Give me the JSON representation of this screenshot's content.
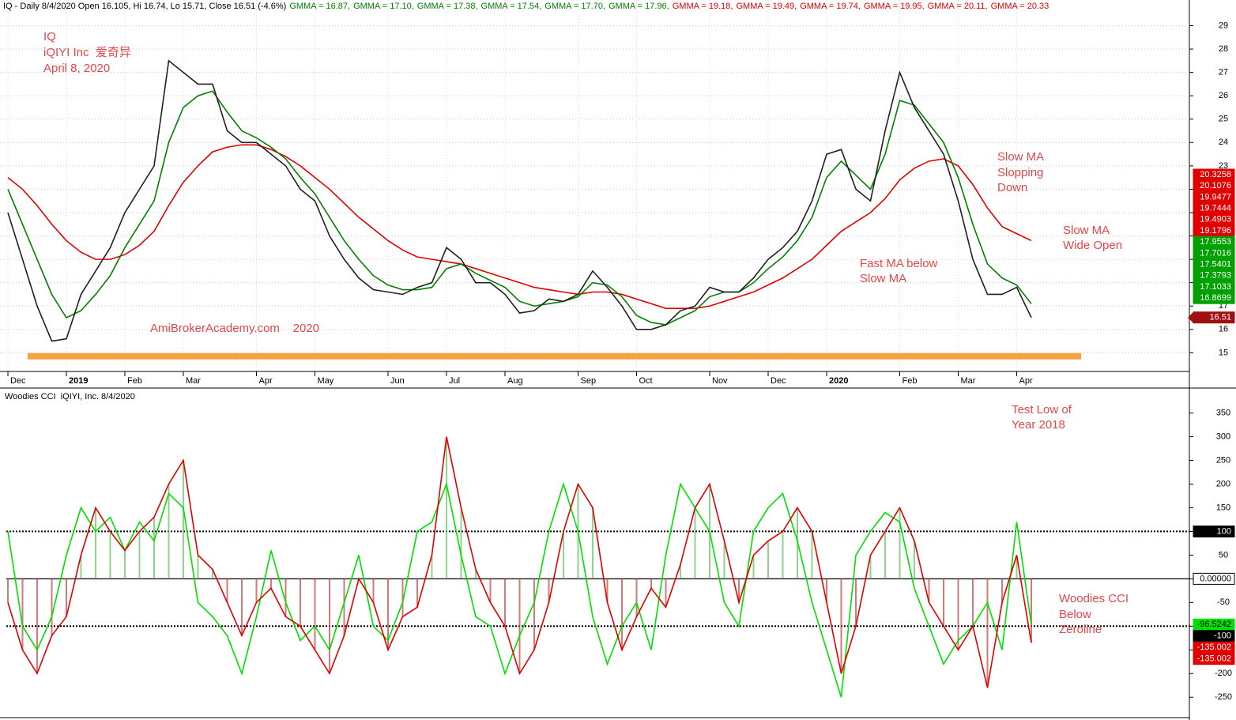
{
  "chart_data": [
    {
      "type": "line",
      "title": "IQ - Daily 8/4/2020 Open 16.105, Hi 16.74, Lo 15.71, Close 16.51 (-4.6%)",
      "header_items": [
        {
          "text": "GMMA = 16.87,",
          "color": "#008000"
        },
        {
          "text": "GMMA = 17.10,",
          "color": "#008000"
        },
        {
          "text": "GMMA = 17.38,",
          "color": "#008000"
        },
        {
          "text": "GMMA = 17.54,",
          "color": "#008000"
        },
        {
          "text": "GMMA = 17.70,",
          "color": "#008000"
        },
        {
          "text": "GMMA = 17.96,",
          "color": "#008000"
        },
        {
          "text": "GMMA = 19.18,",
          "color": "#e00000"
        },
        {
          "text": "GMMA = 19.49,",
          "color": "#e00000"
        },
        {
          "text": "GMMA = 19.74,",
          "color": "#e00000"
        },
        {
          "text": "GMMA = 19.95,",
          "color": "#e00000"
        },
        {
          "text": "GMMA = 20.11,",
          "color": "#e00000"
        },
        {
          "text": "GMMA = 20.33",
          "color": "#e00000"
        }
      ],
      "categories": [
        "Dec",
        null,
        null,
        null,
        "2019",
        null,
        null,
        null,
        "Feb",
        null,
        null,
        null,
        "Mar",
        null,
        null,
        null,
        null,
        "Apr",
        null,
        null,
        null,
        "May",
        null,
        null,
        null,
        null,
        "Jun",
        null,
        null,
        null,
        "Jul",
        null,
        null,
        null,
        "Aug",
        null,
        null,
        null,
        null,
        "Sep",
        null,
        null,
        null,
        "Oct",
        null,
        null,
        null,
        null,
        "Nov",
        null,
        null,
        null,
        "Dec",
        null,
        null,
        null,
        "2020",
        null,
        null,
        null,
        null,
        "Feb",
        null,
        null,
        null,
        "Mar",
        null,
        null,
        null,
        "Apr",
        null
      ],
      "series": [
        {
          "color": "#e00000",
          "values": [
            22.5,
            22,
            21.3,
            20.5,
            19.8,
            19.3,
            19,
            19,
            19.2,
            19.6,
            20.2,
            21.3,
            22.3,
            23,
            23.6,
            23.8,
            23.9,
            23.9,
            23.7,
            23.4,
            23,
            22.5,
            22,
            21.4,
            20.8,
            20.3,
            19.8,
            19.4,
            19.1,
            19,
            18.9,
            18.8,
            18.6,
            18.4,
            18.2,
            18,
            17.8,
            17.7,
            17.6,
            17.5,
            17.6,
            17.6,
            17.5,
            17.3,
            17.1,
            16.9,
            16.9,
            16.9,
            17,
            17.2,
            17.4,
            17.6,
            17.9,
            18.2,
            18.6,
            19,
            19.6,
            20.2,
            20.6,
            21,
            21.6,
            22.4,
            22.9,
            23.2,
            23.3,
            23,
            22.2,
            21.2,
            20.4,
            20.1,
            19.8
          ]
        },
        {
          "color": "#008000",
          "values": [
            22,
            20.5,
            19,
            17.5,
            16.5,
            16.8,
            17.5,
            18.3,
            19.5,
            20.5,
            21.5,
            24,
            25.5,
            26,
            26.2,
            25.3,
            24.5,
            24.2,
            23.8,
            23.3,
            22.5,
            21.8,
            20.8,
            19.8,
            19,
            18.3,
            17.9,
            17.7,
            17.7,
            17.8,
            18.6,
            18.8,
            18.4,
            18.1,
            17.8,
            17.2,
            17,
            17.1,
            17.2,
            17.4,
            18,
            17.9,
            17.4,
            16.6,
            16.3,
            16.2,
            16.5,
            16.8,
            17.4,
            17.6,
            17.6,
            18,
            18.6,
            19.1,
            19.8,
            20.8,
            22.5,
            23.2,
            22.6,
            22,
            23.5,
            25.8,
            25.6,
            24.8,
            24,
            22.5,
            20.5,
            18.8,
            18.2,
            17.9,
            17.1
          ]
        },
        {
          "color": "#202020",
          "values": [
            21,
            19,
            17,
            15.5,
            15.6,
            17.5,
            18.5,
            19.5,
            21,
            22,
            23,
            27.5,
            27,
            26.5,
            26.5,
            24.5,
            24,
            24,
            23.5,
            23,
            22,
            21.5,
            20,
            19,
            18.2,
            17.7,
            17.6,
            17.5,
            17.8,
            18,
            19.5,
            19,
            18,
            18,
            17.5,
            16.7,
            16.8,
            17.3,
            17.2,
            17.5,
            18.5,
            17.8,
            17,
            16,
            16,
            16.2,
            16.8,
            17,
            17.8,
            17.6,
            17.6,
            18.2,
            19,
            19.5,
            20.2,
            21.5,
            23.5,
            23.7,
            22,
            21.5,
            24.5,
            27,
            25.5,
            24.5,
            23.5,
            21.5,
            19,
            17.5,
            17.5,
            17.8,
            16.51
          ]
        }
      ],
      "ylim": [
        14.2,
        30.1
      ],
      "yticks": [
        15,
        16,
        17,
        18,
        19,
        20,
        21,
        22,
        23,
        24,
        25,
        26,
        27,
        28,
        29
      ],
      "grid": true,
      "hline": {
        "value": 14.85,
        "color": "#f7a040"
      },
      "value_tags": [
        {
          "value": 20.3258,
          "color": "#e00000"
        },
        {
          "value": 20.1076,
          "color": "#e00000"
        },
        {
          "value": 19.9477,
          "color": "#e00000"
        },
        {
          "value": 19.7444,
          "color": "#e00000"
        },
        {
          "value": 19.4903,
          "color": "#e00000"
        },
        {
          "value": 19.1796,
          "color": "#e00000"
        },
        {
          "value": 17.9553,
          "color": "#00a000"
        },
        {
          "value": 17.7016,
          "color": "#00a000"
        },
        {
          "value": 17.5401,
          "color": "#00a000"
        },
        {
          "value": 17.3793,
          "color": "#00a000"
        },
        {
          "value": 17.1033,
          "color": "#00a000"
        },
        {
          "value": 16.8699,
          "color": "#00a000"
        },
        {
          "value": 16.51,
          "color": "#a01010"
        }
      ],
      "annotations": [
        "IQ",
        "iQIYI Inc  爱奇异",
        "April 8, 2020",
        "AmiBrokerAcademy.com    2020",
        "Slow MA",
        "Slopping",
        "Down",
        "Slow MA",
        "Wide Open",
        "Fast MA below",
        "Slow MA"
      ]
    },
    {
      "type": "cci",
      "title": "Woodies CCI  iQIYI, Inc. 8/4/2020",
      "series": [
        {
          "color": "#e00000",
          "values": [
            -50,
            -150,
            -200,
            -120,
            -80,
            50,
            150,
            100,
            60,
            100,
            130,
            200,
            250,
            50,
            20,
            -50,
            -120,
            -50,
            -20,
            -80,
            -100,
            -150,
            -200,
            -120,
            0,
            -50,
            -150,
            -80,
            -60,
            50,
            300,
            150,
            20,
            -50,
            -100,
            -200,
            -150,
            -50,
            100,
            200,
            150,
            -50,
            -150,
            -80,
            -20,
            -60,
            30,
            150,
            200,
            80,
            -50,
            50,
            80,
            100,
            150,
            100,
            -50,
            -200,
            -100,
            50,
            100,
            150,
            80,
            -50,
            -100,
            -150,
            -100,
            -230,
            -50,
            50,
            -135.002
          ]
        },
        {
          "color": "#00e000",
          "values": [
            100,
            -100,
            -150,
            -80,
            50,
            150,
            100,
            130,
            60,
            120,
            80,
            180,
            150,
            -50,
            -80,
            -120,
            -200,
            -80,
            60,
            -50,
            -130,
            -100,
            -150,
            -50,
            50,
            -100,
            -130,
            -50,
            100,
            120,
            200,
            50,
            -80,
            -100,
            -200,
            -120,
            -50,
            100,
            200,
            100,
            -80,
            -180,
            -100,
            -50,
            -150,
            50,
            200,
            150,
            100,
            -50,
            -100,
            100,
            150,
            180,
            80,
            -50,
            -150,
            -250,
            50,
            100,
            140,
            120,
            -20,
            -100,
            -180,
            -130,
            -100,
            -50,
            -150,
            120,
            -96.5242
          ]
        }
      ],
      "ylim": [
        -293,
        401
      ],
      "yticks": [
        -250,
        -200,
        -150,
        -100,
        -50,
        0,
        50,
        100,
        150,
        200,
        250,
        300,
        350
      ],
      "levels": [
        100,
        0,
        -100
      ],
      "value_tags": [
        {
          "value": 100,
          "color": "#000000"
        },
        {
          "value": 0,
          "label": "0.00000",
          "color": "#ffffff"
        },
        {
          "value": -96.5242,
          "color": "#00e000"
        },
        {
          "value": -100,
          "color": "#000000"
        },
        {
          "value": -135.002,
          "color": "#e00000"
        },
        {
          "value": -135.002,
          "color": "#e00000"
        }
      ],
      "annotations": [
        "Test Low of",
        "Year 2018",
        "Woodies CCI",
        "Below",
        "Zeroline"
      ]
    }
  ]
}
